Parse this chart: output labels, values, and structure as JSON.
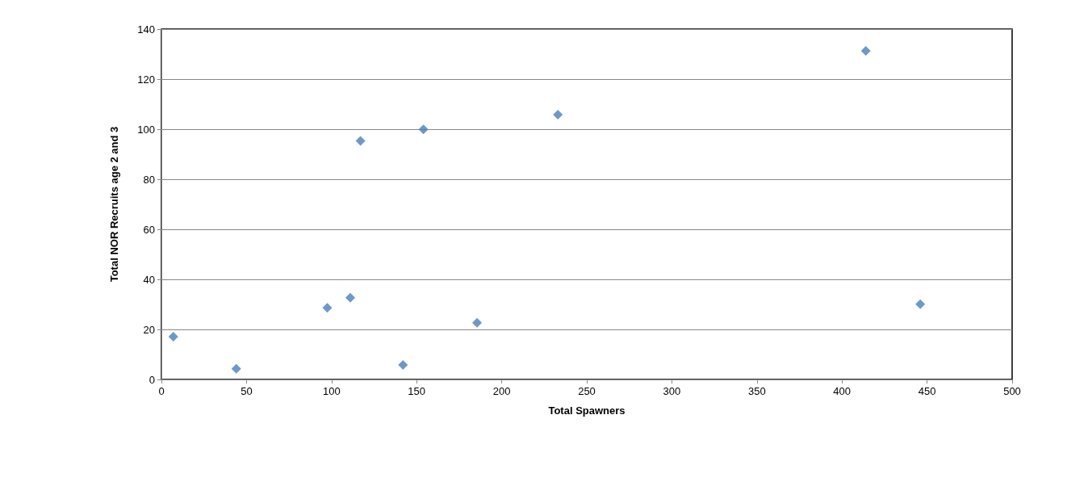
{
  "chart_data": {
    "type": "scatter",
    "xlabel": "Total Spawners",
    "ylabel": "Total NOR Recruits age 2 and 3",
    "x": [
      7,
      44,
      97.5,
      111,
      117,
      142,
      154,
      185.5,
      233,
      414,
      446
    ],
    "series": [
      {
        "color": "#4a7ebb",
        "values": [
          17.1,
          4.3,
          28.6,
          32.7,
          95.3,
          5.8,
          99.9,
          22.7,
          105.8,
          131.3,
          30.1
        ]
      }
    ],
    "xlim": [
      0,
      500
    ],
    "xticks": [
      0,
      50,
      100,
      150,
      200,
      250,
      300,
      350,
      400,
      450,
      500
    ],
    "ylim": [
      0,
      140
    ],
    "yticks": [
      0,
      20,
      40,
      60,
      80,
      100,
      120,
      140
    ],
    "grid": "y",
    "marker": "diamond"
  }
}
